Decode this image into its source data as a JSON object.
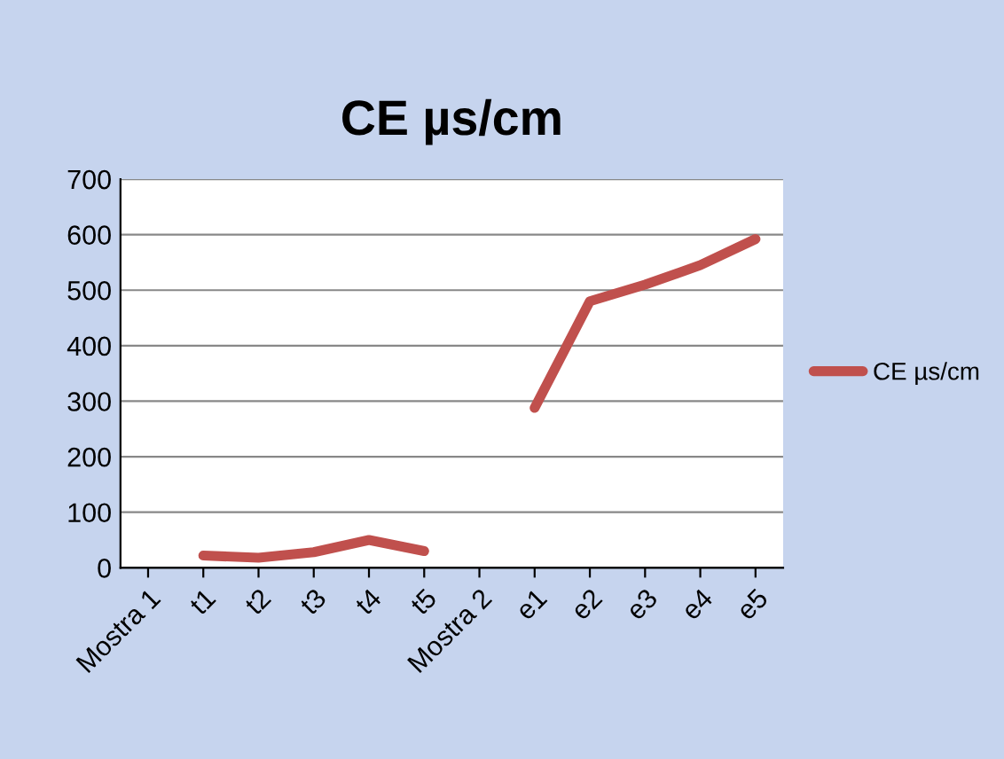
{
  "chart_data": {
    "type": "line",
    "title": "CE µs/cm",
    "categories": [
      "Mostra 1",
      "t1",
      "t2",
      "t3",
      "t4",
      "t5",
      "Mostra 2",
      "e1",
      "e2",
      "e3",
      "e4",
      "e5"
    ],
    "series": [
      {
        "name": "CE µs/cm",
        "color": "#c0504d",
        "values": [
          null,
          22,
          18,
          28,
          50,
          30,
          null,
          288,
          480,
          510,
          545,
          592
        ]
      }
    ],
    "ylim": [
      0,
      700
    ],
    "yticks": [
      0,
      100,
      200,
      300,
      400,
      500,
      600,
      700
    ],
    "grid": "y",
    "legend": "right",
    "marker": "none",
    "line_style": "solid"
  }
}
